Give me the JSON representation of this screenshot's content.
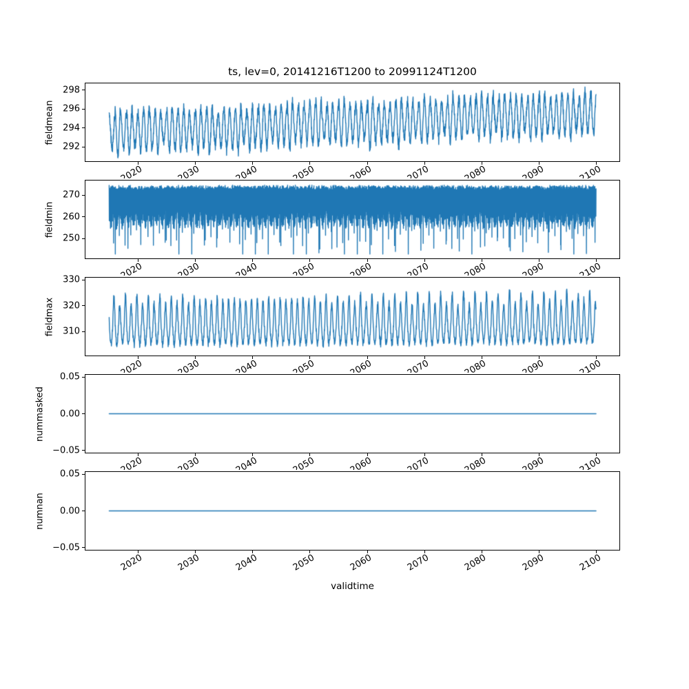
{
  "figure": {
    "background": "#ffffff",
    "line_color": "#1f77b4",
    "frame_color": "#000000",
    "text_color": "#000000"
  },
  "chart_data": {
    "type": "line",
    "title": "ts, lev=0, 20141216T1200 to 20991124T1200",
    "xlabel": "validtime",
    "x_ticks": [
      2020,
      2030,
      2040,
      2050,
      2060,
      2070,
      2080,
      2090,
      2100
    ],
    "x_tick_labels": [
      "2020",
      "2030",
      "2040",
      "2050",
      "2060",
      "2070",
      "2080",
      "2090",
      "2100"
    ],
    "x_tick_rotation_deg": 30,
    "xlim": [
      2010.7,
      2104.1
    ],
    "x_data_range": [
      2014.96,
      2099.9
    ],
    "grid": false,
    "legend": "none",
    "subplots": [
      {
        "ylabel": "fieldmean",
        "y_ticks": [
          292,
          294,
          296,
          298
        ],
        "y_tick_labels": [
          "292",
          "294",
          "296",
          "298"
        ],
        "ylim": [
          290.4,
          298.8
        ],
        "series": {
          "name": "fieldmean",
          "kind": "seasonal_mean",
          "seed": 42,
          "period_years": 1,
          "baseline_start": 293.5,
          "baseline_end": 295.6,
          "seasonal_amplitude": 2.05,
          "amp_variation": 0.18,
          "noise": 0.42,
          "ripple": 0.28,
          "approx_min": 290.8,
          "approx_max": 298.4
        }
      },
      {
        "ylabel": "fieldmin",
        "y_ticks": [
          250,
          260,
          270
        ],
        "y_tick_labels": [
          "250",
          "260",
          "270"
        ],
        "ylim": [
          240.5,
          277.0
        ],
        "series": {
          "name": "fieldmin",
          "kind": "spiky_min",
          "seed": 7,
          "top": 274.6,
          "band_depth": 13,
          "band_annual": 3,
          "band_noise": 4,
          "spike_add_base": 7,
          "spike_add_rand": 9,
          "floor": 242.8,
          "approx_min": 242.9,
          "approx_max": 275.3
        }
      },
      {
        "ylabel": "fieldmax",
        "y_ticks": [
          310,
          320,
          330
        ],
        "y_tick_labels": [
          "310",
          "320",
          "330"
        ],
        "ylim": [
          300.4,
          331.1
        ],
        "series": {
          "name": "fieldmax",
          "kind": "peaky_max",
          "seed": 13,
          "period_years": 1,
          "base": 311.2,
          "trend": 0.6,
          "peak_amplitude": 11.0,
          "peak_variation": 0.22,
          "late_boost": 1.6,
          "trough_depth": 6.2,
          "noise": 1.1,
          "approx_min": 303.9,
          "approx_max": 329.7
        }
      },
      {
        "ylabel": "nummasked",
        "y_ticks": [
          -0.05,
          0.0,
          0.05
        ],
        "y_tick_labels": [
          "−0.05",
          "0.00",
          "0.05"
        ],
        "ylim": [
          -0.054,
          0.054
        ],
        "series": {
          "name": "nummasked",
          "kind": "constant",
          "value": 0,
          "approx_min": 0,
          "approx_max": 0
        }
      },
      {
        "ylabel": "numnan",
        "y_ticks": [
          -0.05,
          0.0,
          0.05
        ],
        "y_tick_labels": [
          "−0.05",
          "0.00",
          "0.05"
        ],
        "ylim": [
          -0.054,
          0.054
        ],
        "series": {
          "name": "numnan",
          "kind": "constant",
          "value": 0,
          "approx_min": 0,
          "approx_max": 0
        }
      }
    ]
  }
}
